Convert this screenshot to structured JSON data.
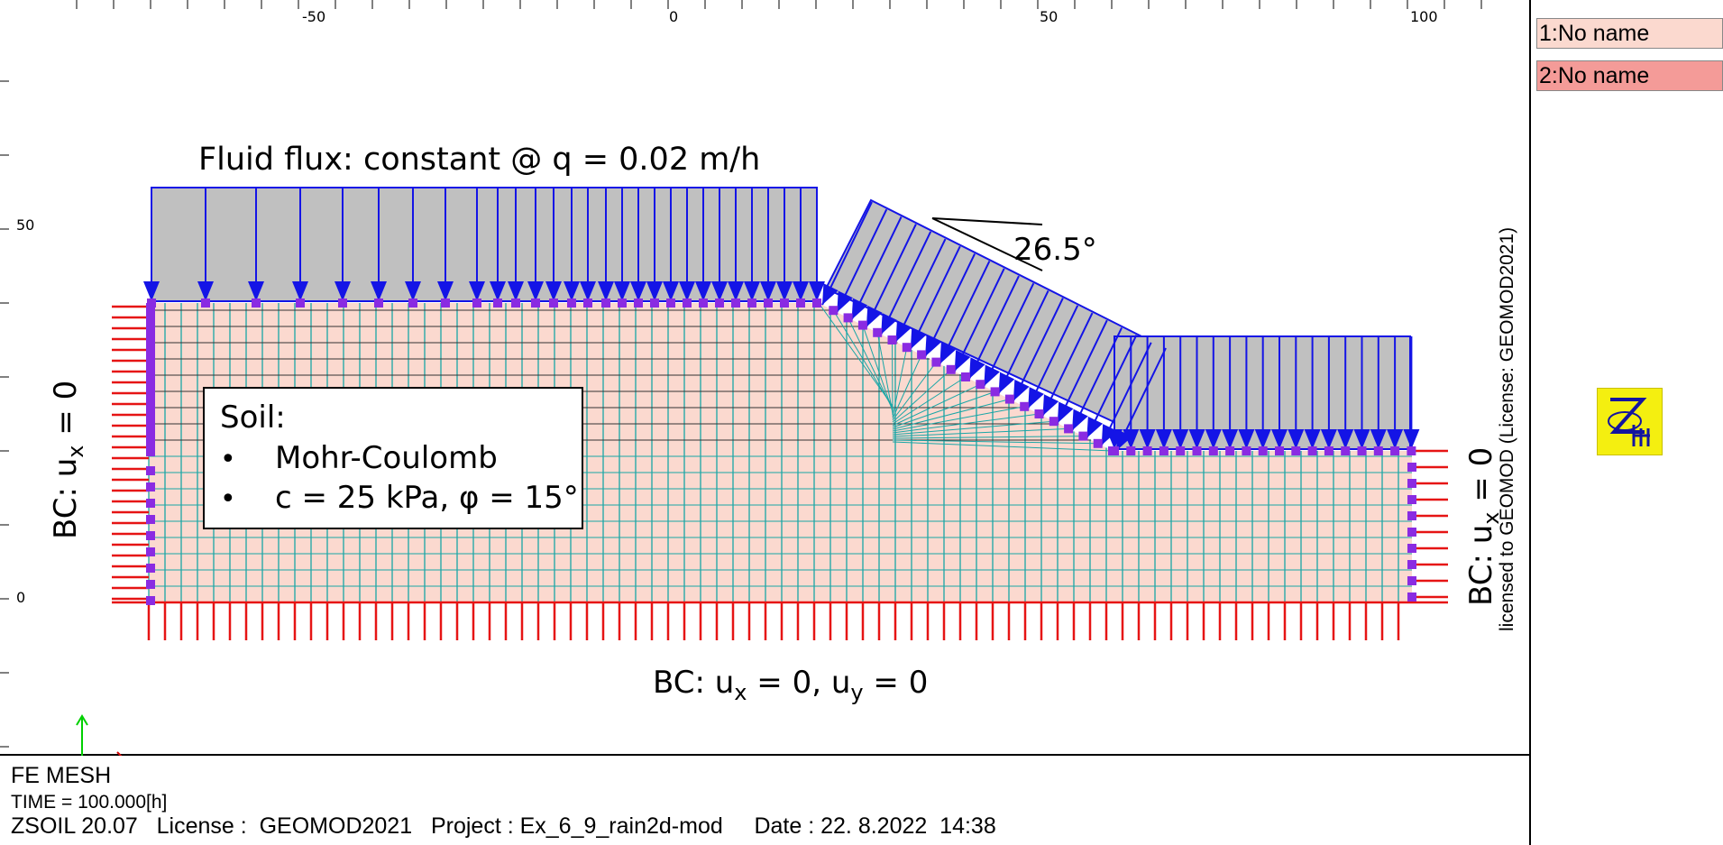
{
  "viewport": {
    "x_ticks": [
      "-50",
      "0",
      "50",
      "100"
    ],
    "y_ticks": [
      "50",
      "0"
    ]
  },
  "annotations": {
    "fluid_flux": "Fluid flux: constant @ q = 0.02 m/h",
    "angle": "26.5°",
    "soil_title": "Soil:",
    "soil_items": [
      "Mohr-Coulomb",
      "c = 25 kPa, φ = 15°"
    ],
    "bullet": "•",
    "bc_left": "BC: u",
    "bc_right": "BC: u",
    "bc_sub_x": "x",
    "bc_sub_y": "y",
    "bc_eq": " = 0",
    "bc_bottom_a": "BC: u",
    "bc_bottom_b": " = 0, u",
    "bc_bottom_c": " = 0"
  },
  "info": {
    "title": "FE MESH",
    "time": "TIME = 100.000[h]",
    "status": "ZSOIL 20.07   License :  GEOMOD2021   Project : Ex_6_9_rain2d-mod     Date : 22. 8.2022  14:38"
  },
  "legend": {
    "items": [
      {
        "label": "1:No name",
        "color": "#fbd9cf"
      },
      {
        "label": "2:No name",
        "color": "#f49b98"
      }
    ],
    "license_text": "licensed to GEOMOD (License: GEOMOD2021)"
  },
  "colors": {
    "soil": "#fbd9cf",
    "mesh": "#1aa6a6",
    "flux": "#1414e6",
    "flux_fill": "#c0c0c0",
    "bc": "#e61414",
    "node": "#8a2be2"
  },
  "icons": {
    "logo": "zsoil-logo-icon",
    "axis": "axis-triad-icon"
  }
}
